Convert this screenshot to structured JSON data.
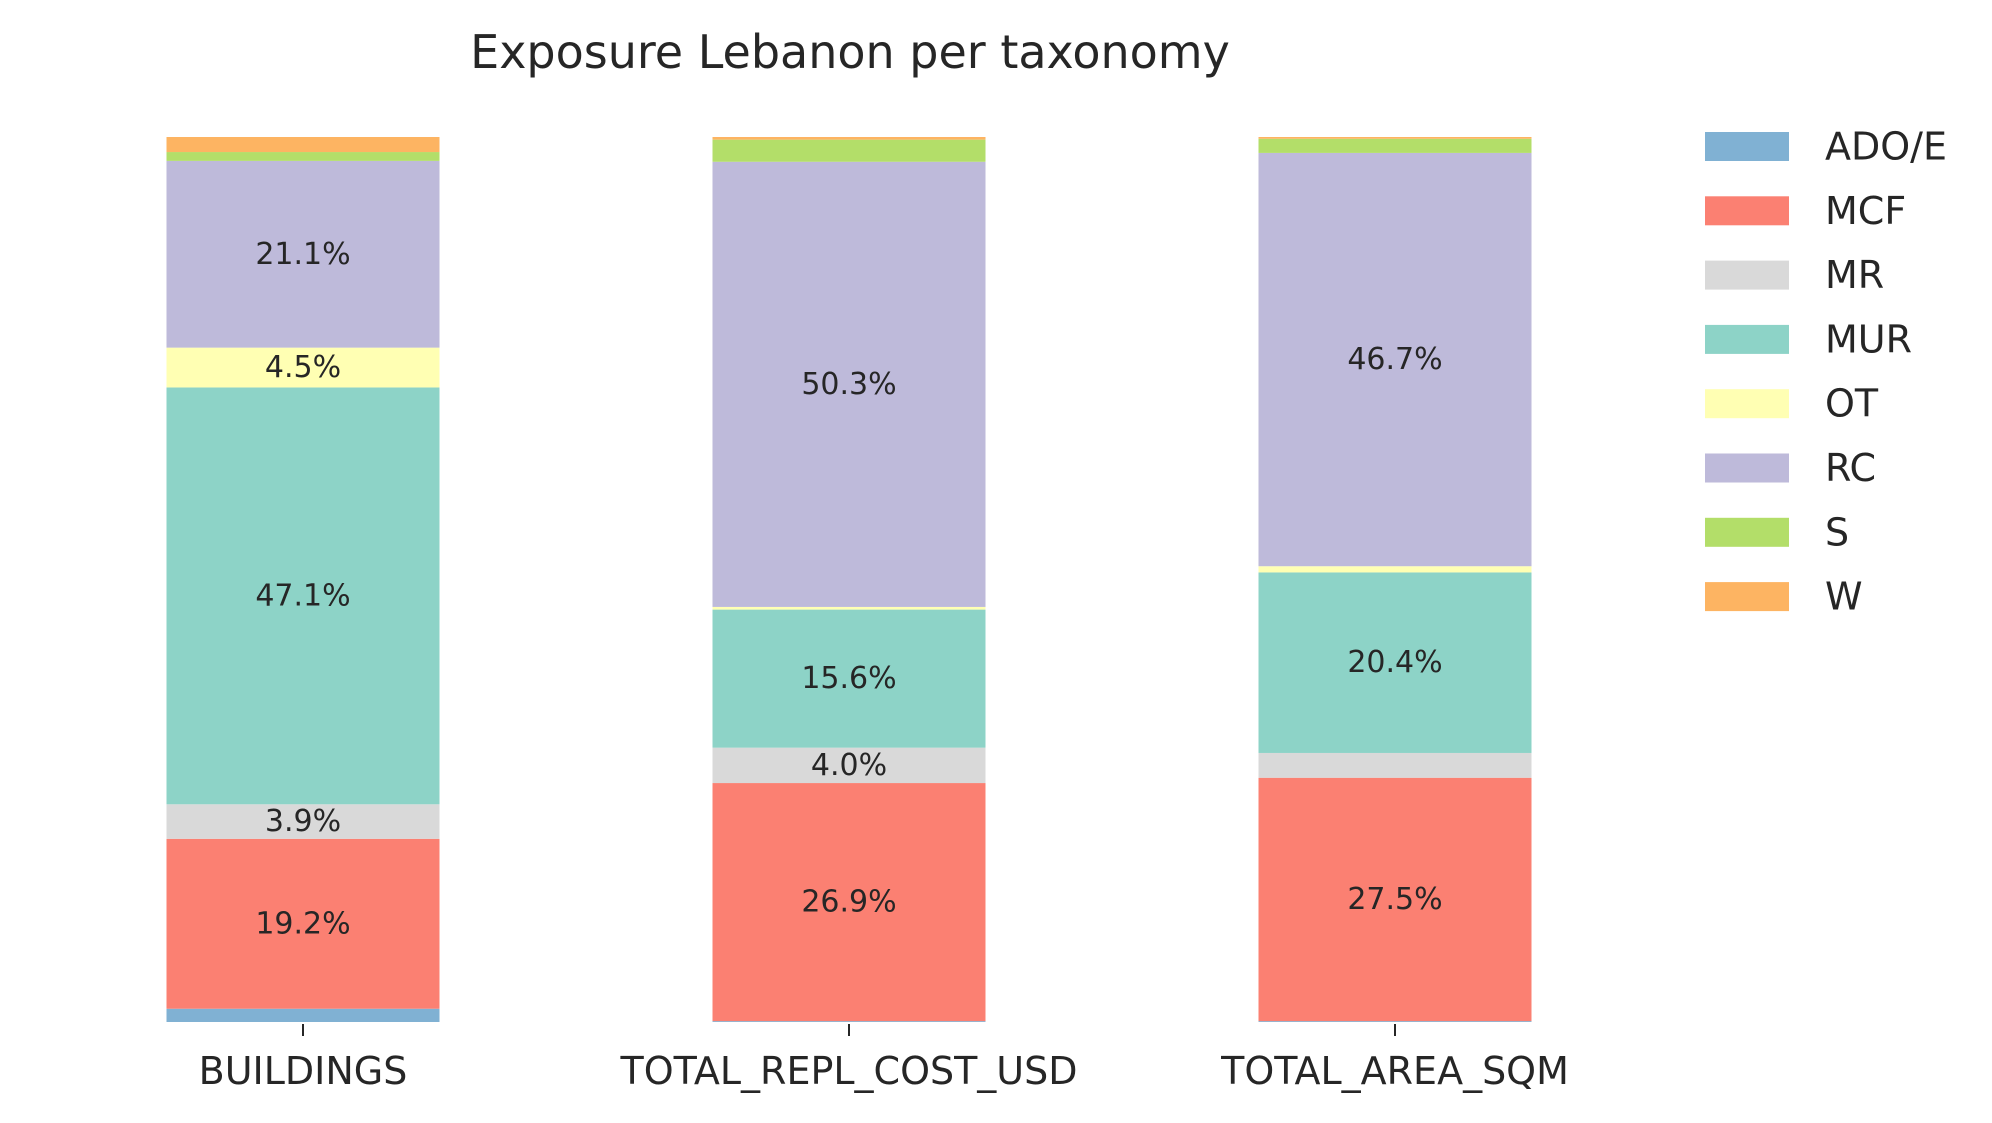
{
  "chart_data": {
    "type": "bar",
    "stacked": true,
    "title": "Exposure Lebanon per taxonomy",
    "xlabel": "",
    "ylabel": "",
    "ylim": [
      0,
      100
    ],
    "grid": false,
    "legend_position": "right",
    "categories": [
      "BUILDINGS",
      "TOTAL_REPL_COST_USD",
      "TOTAL_AREA_SQM"
    ],
    "series": [
      {
        "name": "ADO/E",
        "color": "#80b1d3",
        "values": [
          1.5,
          0.1,
          0.1
        ],
        "labels": [
          "",
          "",
          ""
        ]
      },
      {
        "name": "MCF",
        "color": "#fb8072",
        "values": [
          19.2,
          26.9,
          27.5
        ],
        "labels": [
          "19.2%",
          "26.9%",
          "27.5%"
        ]
      },
      {
        "name": "MR",
        "color": "#d9d9d9",
        "values": [
          3.9,
          4.0,
          2.8
        ],
        "labels": [
          "3.9%",
          "4.0%",
          ""
        ]
      },
      {
        "name": "MUR",
        "color": "#8dd3c7",
        "values": [
          47.1,
          15.6,
          20.4
        ],
        "labels": [
          "47.1%",
          "15.6%",
          "20.4%"
        ]
      },
      {
        "name": "OT",
        "color": "#ffffb3",
        "values": [
          4.5,
          0.3,
          0.7
        ],
        "labels": [
          "4.5%",
          "",
          ""
        ]
      },
      {
        "name": "RC",
        "color": "#bebada",
        "values": [
          21.1,
          50.3,
          46.7
        ],
        "labels": [
          "21.1%",
          "50.3%",
          "46.7%"
        ]
      },
      {
        "name": "S",
        "color": "#b3de69",
        "values": [
          1.0,
          2.5,
          1.6
        ],
        "labels": [
          "",
          "",
          ""
        ]
      },
      {
        "name": "W",
        "color": "#fdb462",
        "values": [
          1.7,
          0.3,
          0.2
        ],
        "labels": [
          "",
          "",
          ""
        ]
      }
    ]
  }
}
